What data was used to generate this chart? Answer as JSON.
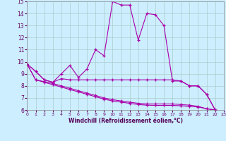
{
  "xlabel": "Windchill (Refroidissement éolien,°C)",
  "xlim": [
    0,
    23
  ],
  "ylim": [
    6,
    15
  ],
  "xticks": [
    0,
    1,
    2,
    3,
    4,
    5,
    6,
    7,
    8,
    9,
    10,
    11,
    12,
    13,
    14,
    15,
    16,
    17,
    18,
    19,
    20,
    21,
    22,
    23
  ],
  "yticks": [
    6,
    7,
    8,
    9,
    10,
    11,
    12,
    13,
    14,
    15
  ],
  "background_color": "#cceeff",
  "grid_color": "#aacccc",
  "line_color": "#aa00aa",
  "curves": [
    [
      9.8,
      9.2,
      8.5,
      8.3,
      9.0,
      9.7,
      8.7,
      9.4,
      11.0,
      10.5,
      15.0,
      14.7,
      14.7,
      11.8,
      14.0,
      13.9,
      13.0,
      8.4,
      8.4,
      8.0,
      8.0,
      7.3,
      6.0
    ],
    [
      9.8,
      9.2,
      8.5,
      8.3,
      8.6,
      8.5,
      8.5,
      8.5,
      8.5,
      8.5,
      8.5,
      8.5,
      8.5,
      8.5,
      8.5,
      8.5,
      8.5,
      8.5,
      8.4,
      8.0,
      8.0,
      7.3,
      6.0
    ],
    [
      9.8,
      8.5,
      8.35,
      8.2,
      8.0,
      7.8,
      7.6,
      7.4,
      7.2,
      7.0,
      6.85,
      6.75,
      6.65,
      6.55,
      6.5,
      6.5,
      6.5,
      6.5,
      6.45,
      6.4,
      6.3,
      6.1,
      6.0
    ],
    [
      9.8,
      8.5,
      8.3,
      8.1,
      7.9,
      7.7,
      7.5,
      7.3,
      7.1,
      6.9,
      6.75,
      6.65,
      6.55,
      6.45,
      6.4,
      6.38,
      6.38,
      6.38,
      6.35,
      6.3,
      6.25,
      6.1,
      6.0
    ]
  ]
}
